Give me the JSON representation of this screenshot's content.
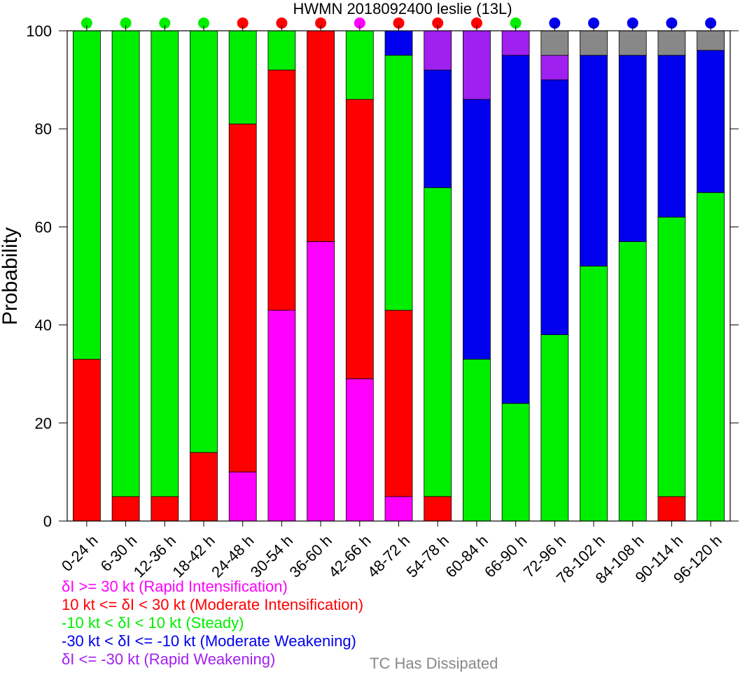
{
  "chart_data": {
    "type": "bar",
    "stacked": true,
    "title": "HWMN 2018092400 leslie (13L)",
    "xlabel": "",
    "ylabel": "Probability",
    "ylim": [
      0,
      100
    ],
    "yticks": [
      0,
      20,
      40,
      60,
      80,
      100
    ],
    "grid": false,
    "categories": [
      "0-24 h",
      "6-30 h",
      "12-36 h",
      "18-42 h",
      "24-48 h",
      "30-54 h",
      "36-60 h",
      "42-66 h",
      "48-72 h",
      "54-78 h",
      "60-84 h",
      "66-90 h",
      "72-96 h",
      "78-102 h",
      "84-108 h",
      "90-114 h",
      "96-120 h"
    ],
    "series": [
      {
        "key": "ri",
        "color": "#ff00ff",
        "values": [
          0,
          0,
          0,
          0,
          10,
          43,
          57,
          29,
          5,
          0,
          0,
          0,
          0,
          0,
          0,
          0,
          0
        ]
      },
      {
        "key": "mi",
        "color": "#ff0000",
        "values": [
          33,
          5,
          5,
          14,
          71,
          49,
          43,
          57,
          38,
          5,
          0,
          0,
          0,
          0,
          0,
          5,
          0
        ]
      },
      {
        "key": "st",
        "color": "#00ee00",
        "values": [
          67,
          95,
          95,
          86,
          19,
          8,
          0,
          14,
          52,
          63,
          33,
          24,
          38,
          52,
          57,
          57,
          67
        ]
      },
      {
        "key": "mw",
        "color": "#0000ee",
        "values": [
          0,
          0,
          0,
          0,
          0,
          0,
          0,
          0,
          5,
          24,
          53,
          71,
          52,
          43,
          38,
          33,
          29
        ]
      },
      {
        "key": "rw",
        "color": "#a020f0",
        "values": [
          0,
          0,
          0,
          0,
          0,
          0,
          0,
          0,
          0,
          8,
          14,
          5,
          5,
          0,
          0,
          0,
          0
        ]
      },
      {
        "key": "dis",
        "color": "#888888",
        "values": [
          0,
          0,
          0,
          0,
          0,
          0,
          0,
          0,
          0,
          0,
          0,
          0,
          5,
          5,
          5,
          5,
          4
        ]
      }
    ],
    "top_markers": [
      "st",
      "st",
      "st",
      "st",
      "mi",
      "mi",
      "mi",
      "ri",
      "mi",
      "mi",
      "mi",
      "st",
      "mw",
      "mw",
      "mw",
      "mw",
      "mw"
    ],
    "legend_placement": "bottom-left",
    "legend": [
      {
        "key": "ri",
        "text": "δI >= 30 kt (Rapid Intensification)",
        "color": "#ff00ff"
      },
      {
        "key": "mi",
        "text": "10 kt <= δI < 30 kt (Moderate Intensification)",
        "color": "#ff0000"
      },
      {
        "key": "st",
        "text": "-10 kt < δI < 10 kt (Steady)",
        "color": "#00ee00"
      },
      {
        "key": "mw",
        "text": "-30 kt < δI <= -10 kt (Moderate Weakening)",
        "color": "#0000ee"
      },
      {
        "key": "rw",
        "text": "δI <= -30 kt (Rapid Weakening)",
        "color": "#a020f0"
      },
      {
        "key": "dis",
        "text": "TC Has Dissipated",
        "color": "#888888"
      }
    ]
  }
}
